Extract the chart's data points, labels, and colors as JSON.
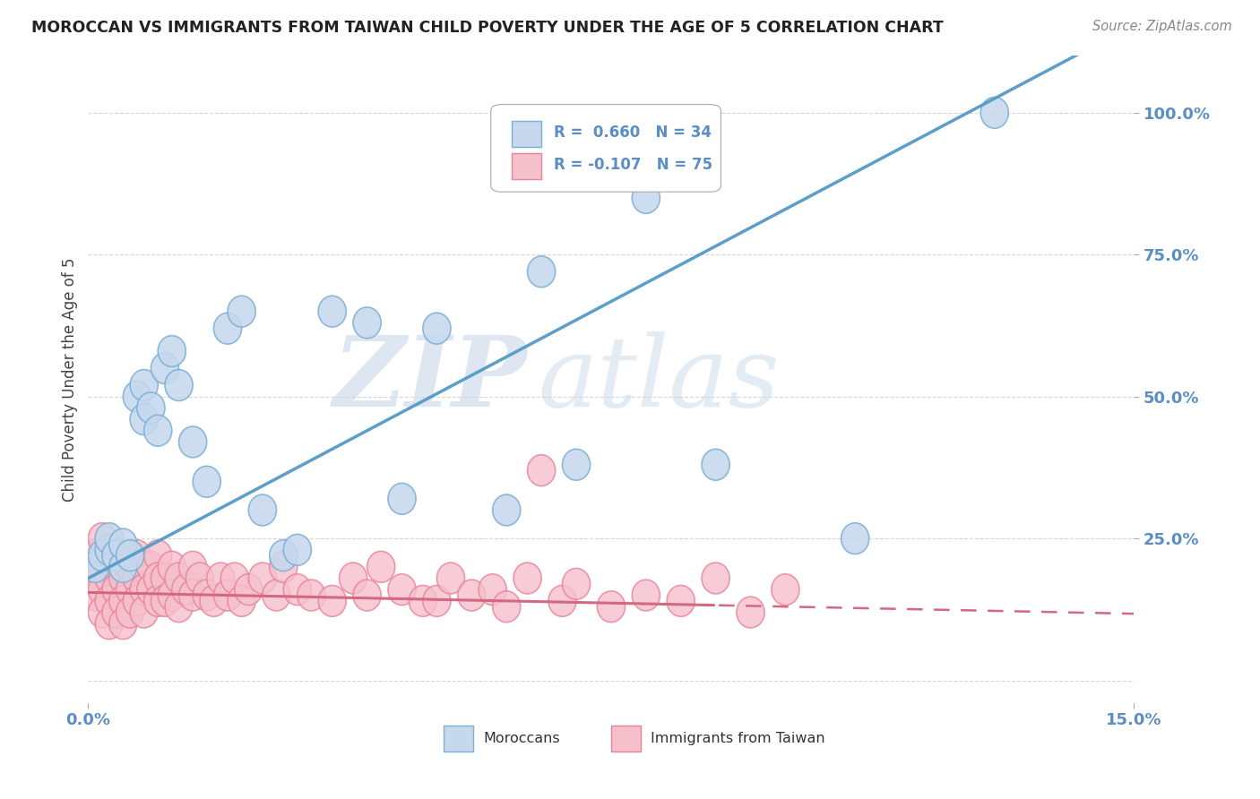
{
  "title": "MOROCCAN VS IMMIGRANTS FROM TAIWAN CHILD POVERTY UNDER THE AGE OF 5 CORRELATION CHART",
  "source": "Source: ZipAtlas.com",
  "ylabel": "Child Poverty Under the Age of 5",
  "xlim": [
    0.0,
    0.15
  ],
  "ylim": [
    -0.04,
    1.1
  ],
  "blue_color": "#7BAFD4",
  "pink_color": "#E8829A",
  "blue_fill": "#C5D8ED",
  "pink_fill": "#F5C0CC",
  "blue_line_color": "#5B9EC9",
  "pink_line_color": "#D46880",
  "background_color": "#FFFFFF",
  "grid_color": "#CCCCCC",
  "moroccans_x": [
    0.001,
    0.002,
    0.003,
    0.003,
    0.004,
    0.005,
    0.005,
    0.006,
    0.007,
    0.008,
    0.008,
    0.009,
    0.01,
    0.011,
    0.012,
    0.013,
    0.015,
    0.017,
    0.02,
    0.022,
    0.025,
    0.028,
    0.03,
    0.035,
    0.04,
    0.045,
    0.05,
    0.06,
    0.065,
    0.07,
    0.08,
    0.09,
    0.11,
    0.13
  ],
  "moroccans_y": [
    0.2,
    0.22,
    0.23,
    0.25,
    0.22,
    0.2,
    0.24,
    0.22,
    0.5,
    0.46,
    0.52,
    0.48,
    0.44,
    0.55,
    0.58,
    0.52,
    0.42,
    0.35,
    0.62,
    0.65,
    0.3,
    0.22,
    0.23,
    0.65,
    0.63,
    0.32,
    0.62,
    0.3,
    0.72,
    0.38,
    0.85,
    0.38,
    0.25,
    1.0
  ],
  "taiwan_x": [
    0.001,
    0.001,
    0.001,
    0.002,
    0.002,
    0.002,
    0.002,
    0.003,
    0.003,
    0.003,
    0.003,
    0.004,
    0.004,
    0.004,
    0.005,
    0.005,
    0.005,
    0.005,
    0.006,
    0.006,
    0.006,
    0.007,
    0.007,
    0.007,
    0.008,
    0.008,
    0.008,
    0.009,
    0.009,
    0.01,
    0.01,
    0.01,
    0.011,
    0.011,
    0.012,
    0.012,
    0.013,
    0.013,
    0.014,
    0.015,
    0.015,
    0.016,
    0.017,
    0.018,
    0.019,
    0.02,
    0.021,
    0.022,
    0.023,
    0.025,
    0.027,
    0.028,
    0.03,
    0.032,
    0.035,
    0.038,
    0.04,
    0.042,
    0.045,
    0.048,
    0.05,
    0.052,
    0.055,
    0.058,
    0.06,
    0.063,
    0.065,
    0.068,
    0.07,
    0.075,
    0.08,
    0.085,
    0.09,
    0.095,
    0.1
  ],
  "taiwan_y": [
    0.22,
    0.18,
    0.15,
    0.25,
    0.2,
    0.16,
    0.12,
    0.22,
    0.18,
    0.14,
    0.1,
    0.2,
    0.16,
    0.12,
    0.22,
    0.18,
    0.14,
    0.1,
    0.2,
    0.16,
    0.12,
    0.22,
    0.18,
    0.14,
    0.2,
    0.16,
    0.12,
    0.2,
    0.16,
    0.22,
    0.18,
    0.14,
    0.18,
    0.14,
    0.2,
    0.15,
    0.18,
    0.13,
    0.16,
    0.2,
    0.15,
    0.18,
    0.15,
    0.14,
    0.18,
    0.15,
    0.18,
    0.14,
    0.16,
    0.18,
    0.15,
    0.2,
    0.16,
    0.15,
    0.14,
    0.18,
    0.15,
    0.2,
    0.16,
    0.14,
    0.14,
    0.18,
    0.15,
    0.16,
    0.13,
    0.18,
    0.37,
    0.14,
    0.17,
    0.13,
    0.15,
    0.14,
    0.18,
    0.12,
    0.16
  ],
  "watermark_zip": "ZIP",
  "watermark_atlas": "atlas",
  "watermark_color": "#C8D8E8"
}
